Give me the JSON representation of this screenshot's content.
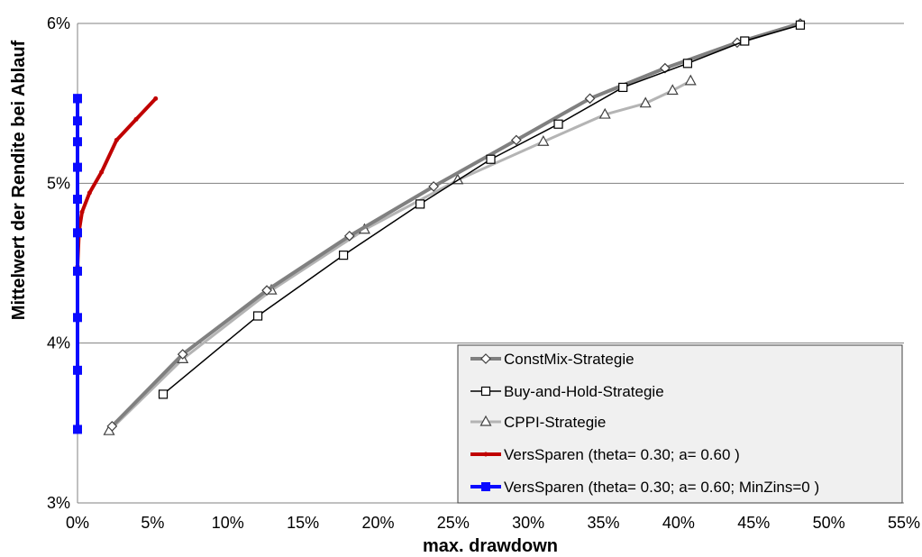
{
  "chart_data": {
    "type": "line",
    "xlabel": "max. drawdown",
    "ylabel": "Mittelwert der Rendite bei Ablauf",
    "xlim": [
      0,
      55
    ],
    "ylim": [
      3,
      6
    ],
    "x_ticks": [
      0,
      5,
      10,
      15,
      20,
      25,
      30,
      35,
      40,
      45,
      50,
      55
    ],
    "x_tick_labels": [
      "0%",
      "5%",
      "10%",
      "15%",
      "20%",
      "25%",
      "30%",
      "35%",
      "40%",
      "45%",
      "50%",
      "55%"
    ],
    "y_ticks": [
      3,
      4,
      5,
      6
    ],
    "y_tick_labels": [
      "3%",
      "4%",
      "5%",
      "6%"
    ],
    "grid": "horizontal",
    "legend_placement": "bottom-right",
    "series": [
      {
        "name": "ConstMix-Strategie",
        "color": "#808080",
        "marker": "diamond",
        "line_width": 4,
        "x": [
          2.3,
          7.0,
          12.6,
          18.1,
          23.7,
          29.2,
          34.1,
          39.1,
          43.9,
          48.1
        ],
        "y": [
          3.48,
          3.93,
          4.33,
          4.67,
          4.98,
          5.27,
          5.53,
          5.72,
          5.88,
          6.0
        ]
      },
      {
        "name": "Buy-and-Hold-Strategie",
        "color": "#000000",
        "marker": "square",
        "line_width": 1.5,
        "x": [
          5.7,
          12.0,
          17.7,
          22.8,
          27.5,
          32.0,
          36.3,
          40.6,
          44.4,
          48.1
        ],
        "y": [
          3.68,
          4.17,
          4.55,
          4.87,
          5.15,
          5.37,
          5.6,
          5.75,
          5.89,
          5.99
        ]
      },
      {
        "name": "CPPI-Strategie",
        "color": "#b4b4b4",
        "marker": "triangle",
        "line_width": 3,
        "x": [
          2.1,
          7.0,
          12.9,
          19.1,
          25.3,
          31.0,
          35.1,
          37.8,
          39.6,
          40.8
        ],
        "y": [
          3.45,
          3.9,
          4.33,
          4.71,
          5.02,
          5.26,
          5.43,
          5.5,
          5.58,
          5.64
        ]
      },
      {
        "name": "VersSparen (theta= 0.30; a= 0.60 )",
        "color": "#c00000",
        "marker": "plus",
        "line_width": 4,
        "x": [
          0.0,
          0.1,
          0.3,
          0.8,
          1.6,
          2.6,
          3.9,
          5.2
        ],
        "y": [
          4.48,
          4.7,
          4.82,
          4.94,
          5.07,
          5.27,
          5.4,
          5.53
        ]
      },
      {
        "name": "VersSparen (theta= 0.30; a= 0.60; MinZins=0 )",
        "color": "#0a0aff",
        "marker": "square-filled",
        "line_width": 4,
        "x": [
          0,
          0,
          0,
          0,
          0,
          0,
          0,
          0,
          0,
          0,
          0,
          0
        ],
        "y": [
          3.46,
          3.83,
          4.16,
          4.45,
          4.69,
          4.9,
          5.1,
          5.26,
          5.39,
          5.53,
          5.53,
          5.53
        ]
      }
    ]
  }
}
